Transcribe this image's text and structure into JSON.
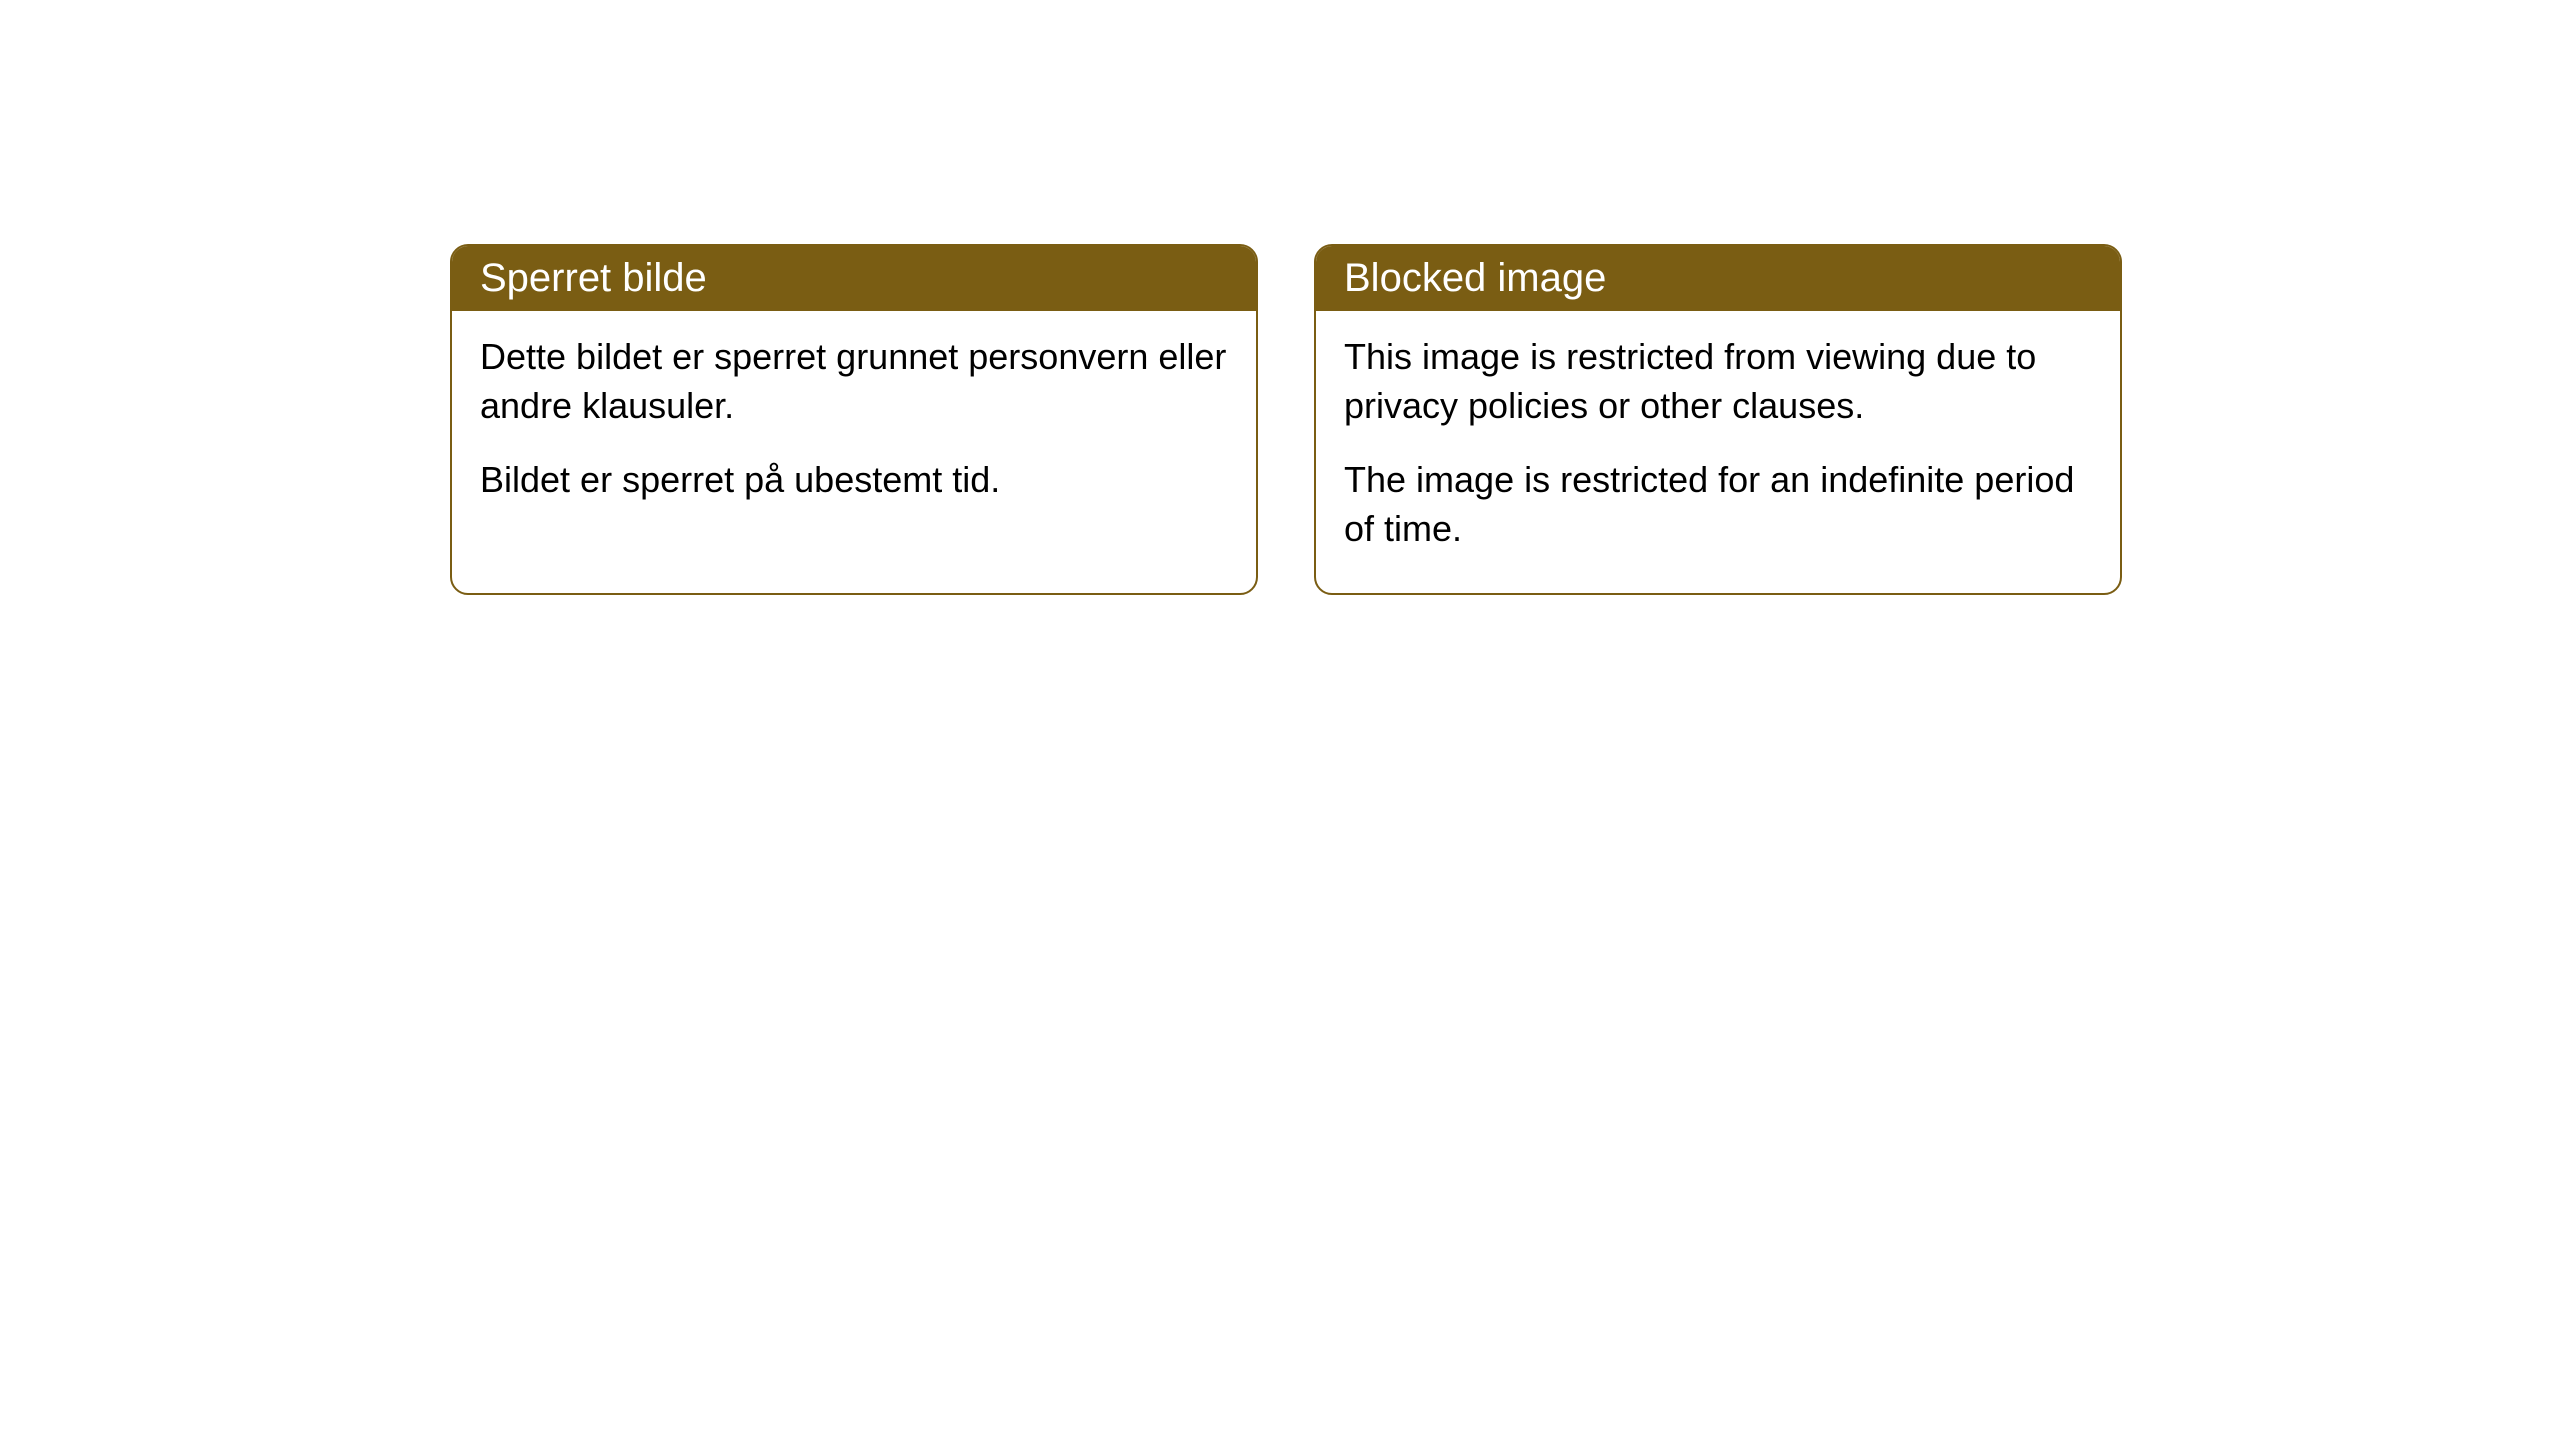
{
  "cards": [
    {
      "title": "Sperret bilde",
      "paragraph1": "Dette bildet er sperret grunnet personvern eller andre klausuler.",
      "paragraph2": "Bildet er sperret på ubestemt tid."
    },
    {
      "title": "Blocked image",
      "paragraph1": "This image is restricted from viewing due to privacy policies or other clauses.",
      "paragraph2": "The image is restricted for an indefinite period of time."
    }
  ],
  "styling": {
    "header_background": "#7a5d13",
    "header_text_color": "#ffffff",
    "border_color": "#7a5d13",
    "body_background": "#ffffff",
    "body_text_color": "#000000",
    "border_radius": 18,
    "title_fontsize": 40,
    "body_fontsize": 36
  }
}
